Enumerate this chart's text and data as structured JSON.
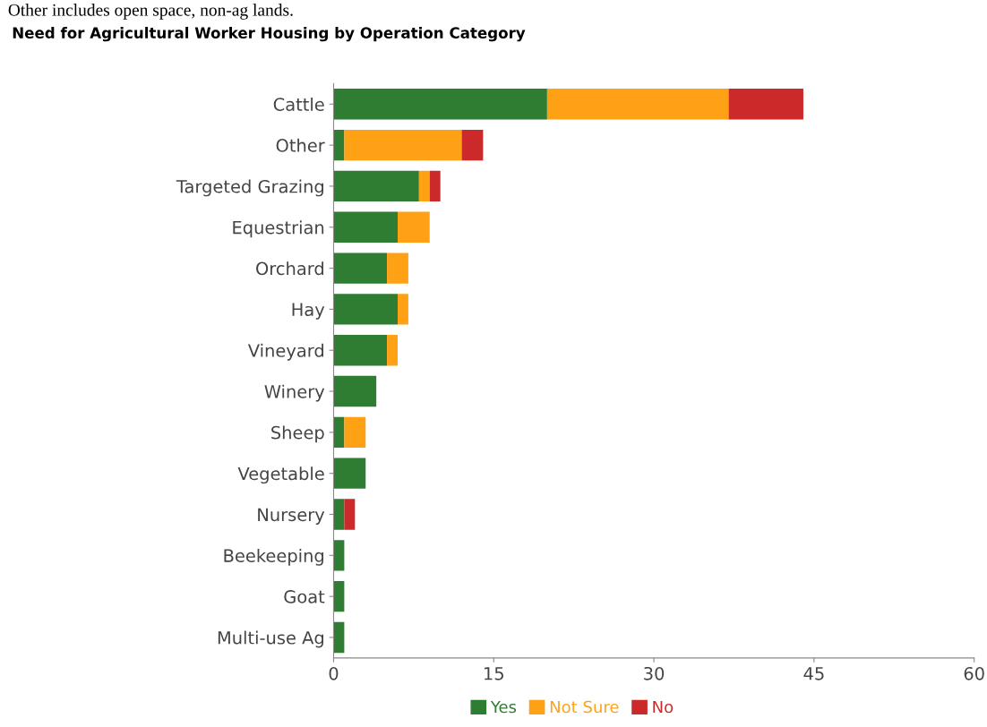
{
  "chart_data": {
    "type": "bar",
    "orientation": "horizontal",
    "stacked": true,
    "title": "Need for Agricultural Worker Housing by Operation Category",
    "annotations": [
      "Other includes open space, non-ag lands."
    ],
    "categories": [
      "Cattle",
      "Other",
      "Targeted Grazing",
      "Equestrian",
      "Orchard",
      "Hay",
      "Vineyard",
      "Winery",
      "Sheep",
      "Vegetable",
      "Nursery",
      "Beekeeping",
      "Goat",
      "Multi-use Ag"
    ],
    "series": [
      {
        "name": "Yes",
        "color": "#2e7d32",
        "values": [
          20,
          1,
          8,
          6,
          5,
          6,
          5,
          4,
          1,
          3,
          1,
          1,
          1,
          1
        ]
      },
      {
        "name": "Not Sure",
        "color": "#ffa114",
        "values": [
          17,
          11,
          1,
          3,
          2,
          1,
          1,
          0,
          2,
          0,
          0,
          0,
          0,
          0
        ]
      },
      {
        "name": "No",
        "color": "#cc2a2a",
        "values": [
          7,
          2,
          1,
          0,
          0,
          0,
          0,
          0,
          0,
          0,
          1,
          0,
          0,
          0
        ]
      }
    ],
    "xlim": [
      0,
      60
    ],
    "xticks": [
      0,
      15,
      30,
      45,
      60
    ],
    "grid": false,
    "legend": "bottom"
  }
}
